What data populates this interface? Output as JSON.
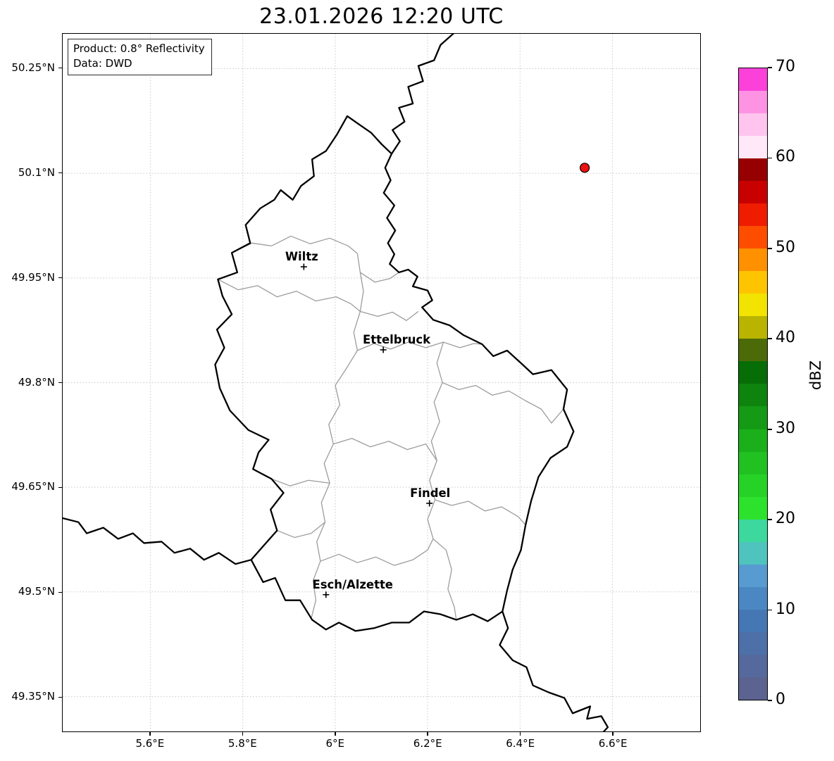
{
  "title": "23.01.2026 12:20 UTC",
  "info_box": {
    "line1": "Product: 0.8° Reflectivity",
    "line2": "Data: DWD"
  },
  "map": {
    "extent": {
      "lon_min": 5.41,
      "lon_max": 6.79,
      "lat_min": 49.3,
      "lat_max": 50.3
    },
    "x_ticks": [
      {
        "value": 5.6,
        "label": "5.6°E"
      },
      {
        "value": 5.8,
        "label": "5.8°E"
      },
      {
        "value": 6.0,
        "label": "6°E"
      },
      {
        "value": 6.2,
        "label": "6.2°E"
      },
      {
        "value": 6.4,
        "label": "6.4°E"
      },
      {
        "value": 6.6,
        "label": "6.6°E"
      }
    ],
    "y_ticks": [
      {
        "value": 50.25,
        "label": "50.25°N"
      },
      {
        "value": 50.1,
        "label": "50.1°N"
      },
      {
        "value": 49.95,
        "label": "49.95°N"
      },
      {
        "value": 49.8,
        "label": "49.8°N"
      },
      {
        "value": 49.65,
        "label": "49.65°N"
      },
      {
        "value": 49.5,
        "label": "49.5°N"
      },
      {
        "value": 49.35,
        "label": "49.35°N"
      }
    ],
    "cities": [
      {
        "id": "wiltz",
        "name": "Wiltz",
        "lon": 5.932,
        "lat": 49.966,
        "label_dx": -3
      },
      {
        "id": "ettelbruck",
        "name": "Ettelbruck",
        "lon": 6.104,
        "lat": 49.847,
        "label_dx": 19
      },
      {
        "id": "findel",
        "name": "Findel",
        "lon": 6.204,
        "lat": 49.627,
        "label_dx": 1
      },
      {
        "id": "esch-alzette",
        "name": "Esch/Alzette",
        "lon": 5.98,
        "lat": 49.496,
        "label_dx": 38
      }
    ],
    "radar_site": {
      "lon": 6.54,
      "lat": 50.108,
      "color": "#ee1111"
    },
    "style": {
      "country_color": "#000000",
      "canton_color": "#9c9c9c",
      "grid_color": "#c8c8c8"
    },
    "borders": {
      "country": [
        [
          6.026,
          50.182
        ],
        [
          6.054,
          50.169
        ],
        [
          6.078,
          50.158
        ],
        [
          6.1,
          50.142
        ],
        [
          6.122,
          50.128
        ],
        [
          6.108,
          50.108
        ],
        [
          6.12,
          50.09
        ],
        [
          6.105,
          50.072
        ],
        [
          6.128,
          50.054
        ],
        [
          6.112,
          50.036
        ],
        [
          6.13,
          50.018
        ],
        [
          6.114,
          50.0
        ],
        [
          6.128,
          49.984
        ],
        [
          6.118,
          49.97
        ],
        [
          6.138,
          49.958
        ],
        [
          6.158,
          49.962
        ],
        [
          6.178,
          49.952
        ],
        [
          6.168,
          49.938
        ],
        [
          6.2,
          49.932
        ],
        [
          6.21,
          49.918
        ],
        [
          6.188,
          49.908
        ],
        [
          6.212,
          49.89
        ],
        [
          6.248,
          49.882
        ],
        [
          6.278,
          49.868
        ],
        [
          6.318,
          49.855
        ],
        [
          6.342,
          49.838
        ],
        [
          6.372,
          49.846
        ],
        [
          6.402,
          49.828
        ],
        [
          6.428,
          49.812
        ],
        [
          6.468,
          49.818
        ],
        [
          6.502,
          49.79
        ],
        [
          6.494,
          49.762
        ],
        [
          6.516,
          49.73
        ],
        [
          6.502,
          49.708
        ],
        [
          6.466,
          49.692
        ],
        [
          6.44,
          49.665
        ],
        [
          6.424,
          49.63
        ],
        [
          6.412,
          49.596
        ],
        [
          6.402,
          49.56
        ],
        [
          6.384,
          49.532
        ],
        [
          6.372,
          49.502
        ],
        [
          6.362,
          49.472
        ],
        [
          6.33,
          49.458
        ],
        [
          6.298,
          49.468
        ],
        [
          6.262,
          49.46
        ],
        [
          6.228,
          49.468
        ],
        [
          6.192,
          49.472
        ],
        [
          6.16,
          49.456
        ],
        [
          6.122,
          49.456
        ],
        [
          6.084,
          49.448
        ],
        [
          6.044,
          49.444
        ],
        [
          6.008,
          49.456
        ],
        [
          5.98,
          49.446
        ],
        [
          5.95,
          49.46
        ],
        [
          5.924,
          49.488
        ],
        [
          5.892,
          49.488
        ],
        [
          5.87,
          49.52
        ],
        [
          5.844,
          49.514
        ],
        [
          5.818,
          49.546
        ],
        [
          5.842,
          49.564
        ],
        [
          5.874,
          49.588
        ],
        [
          5.86,
          49.618
        ],
        [
          5.888,
          49.642
        ],
        [
          5.862,
          49.662
        ],
        [
          5.822,
          49.676
        ],
        [
          5.834,
          49.7
        ],
        [
          5.856,
          49.718
        ],
        [
          5.812,
          49.732
        ],
        [
          5.772,
          49.76
        ],
        [
          5.75,
          49.792
        ],
        [
          5.74,
          49.826
        ],
        [
          5.76,
          49.85
        ],
        [
          5.744,
          49.876
        ],
        [
          5.776,
          49.898
        ],
        [
          5.756,
          49.924
        ],
        [
          5.746,
          49.948
        ],
        [
          5.788,
          49.958
        ],
        [
          5.776,
          49.986
        ],
        [
          5.816,
          50.0
        ],
        [
          5.806,
          50.026
        ],
        [
          5.838,
          50.05
        ],
        [
          5.868,
          50.062
        ],
        [
          5.882,
          50.076
        ],
        [
          5.908,
          50.062
        ],
        [
          5.926,
          50.082
        ],
        [
          5.954,
          50.096
        ],
        [
          5.95,
          50.12
        ],
        [
          5.98,
          50.132
        ],
        [
          6.004,
          50.156
        ]
      ],
      "neighbors": [
        [
          [
            6.122,
            50.128
          ],
          [
            6.14,
            50.146
          ],
          [
            6.124,
            50.162
          ],
          [
            6.15,
            50.174
          ],
          [
            6.138,
            50.194
          ],
          [
            6.168,
            50.2
          ],
          [
            6.158,
            50.224
          ],
          [
            6.19,
            50.232
          ],
          [
            6.18,
            50.254
          ],
          [
            6.214,
            50.262
          ],
          [
            6.228,
            50.284
          ],
          [
            6.262,
            50.304
          ]
        ],
        [
          [
            6.362,
            49.472
          ],
          [
            6.374,
            49.448
          ],
          [
            6.356,
            49.424
          ],
          [
            6.384,
            49.402
          ],
          [
            6.414,
            49.392
          ],
          [
            6.428,
            49.366
          ],
          [
            6.462,
            49.356
          ],
          [
            6.496,
            49.348
          ],
          [
            6.514,
            49.326
          ],
          [
            6.552,
            49.336
          ],
          [
            6.545,
            49.318
          ],
          [
            6.576,
            49.322
          ],
          [
            6.59,
            49.306
          ],
          [
            6.576,
            49.296
          ],
          [
            6.604,
            49.29
          ]
        ],
        [
          [
            5.408,
            49.606
          ],
          [
            5.444,
            49.6
          ],
          [
            5.462,
            49.584
          ],
          [
            5.498,
            49.592
          ],
          [
            5.53,
            49.576
          ],
          [
            5.562,
            49.584
          ],
          [
            5.586,
            49.57
          ],
          [
            5.624,
            49.572
          ],
          [
            5.652,
            49.556
          ],
          [
            5.686,
            49.562
          ],
          [
            5.716,
            49.546
          ],
          [
            5.748,
            49.556
          ],
          [
            5.784,
            49.54
          ],
          [
            5.818,
            49.546
          ]
        ]
      ],
      "cantons": [
        [
          [
            5.776,
            49.986
          ],
          [
            5.82,
            50.0
          ],
          [
            5.862,
            49.996
          ],
          [
            5.904,
            50.01
          ],
          [
            5.946,
            49.999
          ],
          [
            5.988,
            50.007
          ],
          [
            6.028,
            49.996
          ],
          [
            6.048,
            49.985
          ],
          [
            6.054,
            49.958
          ],
          [
            6.086,
            49.944
          ],
          [
            6.118,
            49.949
          ],
          [
            6.138,
            49.958
          ]
        ],
        [
          [
            5.746,
            49.948
          ],
          [
            5.79,
            49.933
          ],
          [
            5.832,
            49.939
          ],
          [
            5.874,
            49.923
          ],
          [
            5.916,
            49.931
          ],
          [
            5.958,
            49.917
          ],
          [
            6.002,
            49.923
          ],
          [
            6.034,
            49.913
          ],
          [
            6.054,
            49.902
          ]
        ],
        [
          [
            6.054,
            49.958
          ],
          [
            6.061,
            49.931
          ],
          [
            6.054,
            49.902
          ]
        ],
        [
          [
            6.054,
            49.902
          ],
          [
            6.092,
            49.895
          ],
          [
            6.124,
            49.901
          ],
          [
            6.154,
            49.889
          ],
          [
            6.18,
            49.902
          ]
        ],
        [
          [
            6.054,
            49.902
          ],
          [
            6.04,
            49.872
          ],
          [
            6.048,
            49.846
          ],
          [
            6.024,
            49.82
          ],
          [
            6.0,
            49.796
          ],
          [
            6.01,
            49.768
          ],
          [
            5.986,
            49.74
          ],
          [
            5.996,
            49.712
          ],
          [
            5.976,
            49.684
          ],
          [
            5.988,
            49.656
          ],
          [
            5.97,
            49.628
          ],
          [
            5.978,
            49.6
          ],
          [
            5.96,
            49.572
          ],
          [
            5.968,
            49.544
          ],
          [
            5.952,
            49.516
          ],
          [
            5.958,
            49.488
          ],
          [
            5.948,
            49.462
          ]
        ],
        [
          [
            6.048,
            49.846
          ],
          [
            6.084,
            49.856
          ],
          [
            6.12,
            49.848
          ],
          [
            6.158,
            49.858
          ],
          [
            6.196,
            49.85
          ],
          [
            6.234,
            49.858
          ],
          [
            6.27,
            49.85
          ],
          [
            6.3,
            49.856
          ],
          [
            6.318,
            49.855
          ]
        ],
        [
          [
            6.234,
            49.858
          ],
          [
            6.22,
            49.828
          ],
          [
            6.232,
            49.8
          ],
          [
            6.214,
            49.772
          ],
          [
            6.226,
            49.744
          ],
          [
            6.208,
            49.716
          ],
          [
            6.22,
            49.688
          ],
          [
            6.204,
            49.66
          ],
          [
            6.216,
            49.632
          ],
          [
            6.2,
            49.604
          ],
          [
            6.212,
            49.576
          ],
          [
            6.24,
            49.56
          ],
          [
            6.252,
            49.532
          ],
          [
            6.244,
            49.504
          ],
          [
            6.258,
            49.478
          ],
          [
            6.262,
            49.46
          ]
        ],
        [
          [
            6.232,
            49.8
          ],
          [
            6.268,
            49.79
          ],
          [
            6.304,
            49.796
          ],
          [
            6.34,
            49.782
          ],
          [
            6.376,
            49.788
          ],
          [
            6.412,
            49.774
          ],
          [
            6.446,
            49.762
          ],
          [
            6.468,
            49.742
          ],
          [
            6.494,
            49.762
          ]
        ],
        [
          [
            6.216,
            49.632
          ],
          [
            6.252,
            49.624
          ],
          [
            6.288,
            49.63
          ],
          [
            6.324,
            49.616
          ],
          [
            6.36,
            49.622
          ],
          [
            6.396,
            49.608
          ],
          [
            6.412,
            49.596
          ]
        ],
        [
          [
            5.968,
            49.544
          ],
          [
            6.008,
            49.554
          ],
          [
            6.048,
            49.542
          ],
          [
            6.088,
            49.55
          ],
          [
            6.128,
            49.538
          ],
          [
            6.168,
            49.546
          ],
          [
            6.2,
            49.56
          ],
          [
            6.212,
            49.576
          ]
        ],
        [
          [
            5.996,
            49.712
          ],
          [
            6.036,
            49.72
          ],
          [
            6.076,
            49.708
          ],
          [
            6.116,
            49.716
          ],
          [
            6.156,
            49.704
          ],
          [
            6.196,
            49.712
          ],
          [
            6.22,
            49.688
          ]
        ],
        [
          [
            5.862,
            49.662
          ],
          [
            5.902,
            49.652
          ],
          [
            5.942,
            49.66
          ],
          [
            5.988,
            49.656
          ]
        ],
        [
          [
            5.874,
            49.588
          ],
          [
            5.912,
            49.578
          ],
          [
            5.948,
            49.584
          ],
          [
            5.978,
            49.6
          ]
        ]
      ]
    }
  },
  "colorbar": {
    "label": "dBZ",
    "min": 0,
    "max": 70,
    "ticks": [
      {
        "value": 0,
        "label": "0"
      },
      {
        "value": 10,
        "label": "10"
      },
      {
        "value": 20,
        "label": "20"
      },
      {
        "value": 30,
        "label": "30"
      },
      {
        "value": 40,
        "label": "40"
      },
      {
        "value": 50,
        "label": "50"
      },
      {
        "value": 60,
        "label": "60"
      },
      {
        "value": 70,
        "label": "70"
      }
    ],
    "segments": [
      {
        "from": 0,
        "to": 2.5,
        "color": "#5c6390"
      },
      {
        "from": 2.5,
        "to": 5,
        "color": "#55699c"
      },
      {
        "from": 5,
        "to": 7.5,
        "color": "#4d70a9"
      },
      {
        "from": 7.5,
        "to": 10,
        "color": "#4677b5"
      },
      {
        "from": 10,
        "to": 12.5,
        "color": "#4b88c3"
      },
      {
        "from": 12.5,
        "to": 15,
        "color": "#579bd1"
      },
      {
        "from": 15,
        "to": 17.5,
        "color": "#4fc3bd"
      },
      {
        "from": 17.5,
        "to": 20,
        "color": "#3dd89e"
      },
      {
        "from": 20,
        "to": 22.5,
        "color": "#2de22d"
      },
      {
        "from": 22.5,
        "to": 25,
        "color": "#27d227"
      },
      {
        "from": 25,
        "to": 27.5,
        "color": "#21c121"
      },
      {
        "from": 27.5,
        "to": 30,
        "color": "#1bb01b"
      },
      {
        "from": 30,
        "to": 32.5,
        "color": "#149a14"
      },
      {
        "from": 32.5,
        "to": 35,
        "color": "#0e840e"
      },
      {
        "from": 35,
        "to": 37.5,
        "color": "#076e07"
      },
      {
        "from": 37.5,
        "to": 40,
        "color": "#4c6b08"
      },
      {
        "from": 40,
        "to": 42.5,
        "color": "#b9b400"
      },
      {
        "from": 42.5,
        "to": 45,
        "color": "#f2e300"
      },
      {
        "from": 45,
        "to": 47.5,
        "color": "#ffc400"
      },
      {
        "from": 47.5,
        "to": 50,
        "color": "#ff9000"
      },
      {
        "from": 50,
        "to": 52.5,
        "color": "#ff4d00"
      },
      {
        "from": 52.5,
        "to": 55,
        "color": "#ef1c00"
      },
      {
        "from": 55,
        "to": 57.5,
        "color": "#c90000"
      },
      {
        "from": 57.5,
        "to": 60,
        "color": "#970000"
      },
      {
        "from": 60,
        "to": 62.5,
        "color": "#ffe9f9"
      },
      {
        "from": 62.5,
        "to": 65,
        "color": "#ffc5ef"
      },
      {
        "from": 65,
        "to": 67.5,
        "color": "#ff93e3"
      },
      {
        "from": 67.5,
        "to": 70,
        "color": "#fb41da"
      }
    ]
  }
}
